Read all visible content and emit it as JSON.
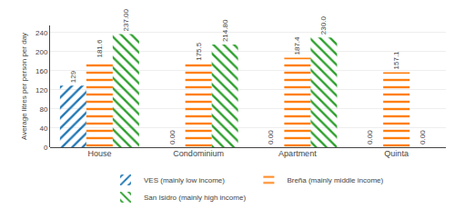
{
  "chart_data": {
    "type": "bar",
    "categories": [
      "House",
      "Condominium",
      "Apartment",
      "Quinta"
    ],
    "series": [
      {
        "name": "VES (mainly low income)",
        "values": [
          129.0,
          0.0,
          0.0,
          0.0
        ],
        "value_labels": [
          "129",
          "0.00",
          "0.00",
          "0.00"
        ]
      },
      {
        "name": "Breña (mainly middle income)",
        "values": [
          181.6,
          175.5,
          187.4,
          157.1
        ],
        "value_labels": [
          "181.6",
          "175.5",
          "187.4",
          "157.1"
        ]
      },
      {
        "name": "San Isidro (mainly high income)",
        "values": [
          237.0,
          214.8,
          230.0,
          0.0
        ],
        "value_labels": [
          "237.00",
          "214.80",
          "230.0",
          "0.00"
        ]
      }
    ],
    "ylabel": "Average litres per person per day",
    "ylim": [
      0,
      255
    ],
    "yticks": [
      0,
      40,
      80,
      120,
      160,
      200,
      240
    ],
    "grid": true,
    "legend": "bottom",
    "data_labels": true
  }
}
